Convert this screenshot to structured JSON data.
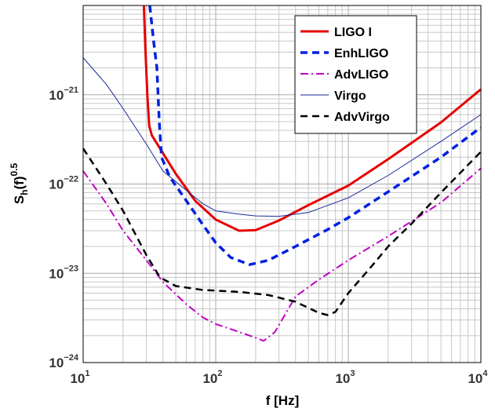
{
  "chart_data": {
    "type": "line",
    "xlabel": "f [Hz]",
    "ylabel": {
      "base": "S",
      "sub": "h",
      "mid": "(f)",
      "sup": "0.5"
    },
    "x_scale": "log",
    "y_scale": "log",
    "xlim": [
      10,
      10000
    ],
    "ylim": [
      1e-24,
      1e-20
    ],
    "grid": {
      "major": true,
      "minor": true
    },
    "legend_position": "top-right",
    "x_ticks": [
      {
        "base": "10",
        "exp": "1",
        "value": 10
      },
      {
        "base": "10",
        "exp": "2",
        "value": 100
      },
      {
        "base": "10",
        "exp": "3",
        "value": 1000
      },
      {
        "base": "10",
        "exp": "4",
        "value": 10000
      }
    ],
    "y_ticks": [
      {
        "base": "10",
        "exp": "−21",
        "value": 1e-21
      },
      {
        "base": "10",
        "exp": "−22",
        "value": 1e-22
      },
      {
        "base": "10",
        "exp": "−23",
        "value": 1e-23
      },
      {
        "base": "10",
        "exp": "−24",
        "value": 1e-24
      }
    ],
    "series": [
      {
        "name": "LIGO I",
        "color": "#e60000",
        "style": "solid",
        "width": 3,
        "points": [
          [
            28.7,
            1e-20
          ],
          [
            29.5,
            3.2e-21
          ],
          [
            30.5,
            1e-21
          ],
          [
            31.5,
            4.5e-22
          ],
          [
            33,
            3.5e-22
          ],
          [
            38,
            2.5e-22
          ],
          [
            50,
            1.3e-22
          ],
          [
            70,
            6.5e-23
          ],
          [
            100,
            4e-23
          ],
          [
            150,
            3e-23
          ],
          [
            200,
            3.05e-23
          ],
          [
            300,
            3.9e-23
          ],
          [
            500,
            5.8e-23
          ],
          [
            1000,
            9.6e-23
          ],
          [
            2000,
            1.9e-22
          ],
          [
            5000,
            4.9e-22
          ],
          [
            10000,
            1.15e-21
          ]
        ]
      },
      {
        "name": "EnhLIGO",
        "color": "#0020e0",
        "style": "dashed",
        "width": 3.5,
        "points": [
          [
            31.8,
            1e-20
          ],
          [
            34,
            4e-21
          ],
          [
            36,
            2e-21
          ],
          [
            37.5,
            5e-22
          ],
          [
            39,
            2e-22
          ],
          [
            45,
            1.2e-22
          ],
          [
            60,
            6.5e-23
          ],
          [
            80,
            3.5e-23
          ],
          [
            100,
            2.2e-23
          ],
          [
            130,
            1.5e-23
          ],
          [
            180,
            1.25e-23
          ],
          [
            250,
            1.4e-23
          ],
          [
            400,
            2e-23
          ],
          [
            700,
            3.1e-23
          ],
          [
            1000,
            4.2e-23
          ],
          [
            2000,
            8.2e-23
          ],
          [
            5000,
            2e-22
          ],
          [
            10000,
            4.3e-22
          ]
        ]
      },
      {
        "name": "AdvLIGO",
        "color": "#c000c0",
        "style": "dashdot",
        "width": 2,
        "points": [
          [
            10,
            1.4e-22
          ],
          [
            15,
            6e-23
          ],
          [
            20,
            3e-23
          ],
          [
            30,
            1.4e-23
          ],
          [
            40,
            8e-24
          ],
          [
            60,
            4.5e-24
          ],
          [
            80,
            3.2e-24
          ],
          [
            100,
            2.7e-24
          ],
          [
            150,
            2.2e-24
          ],
          [
            200,
            1.9e-24
          ],
          [
            230,
            1.75e-24
          ],
          [
            280,
            2.2e-24
          ],
          [
            400,
            5.5e-24
          ],
          [
            600,
            8.5e-24
          ],
          [
            1000,
            1.4e-23
          ],
          [
            2000,
            2.6e-23
          ],
          [
            5000,
            6.2e-23
          ],
          [
            10000,
            1.5e-22
          ]
        ]
      },
      {
        "name": "Virgo",
        "color": "#1a2a9a",
        "style": "solid",
        "width": 1,
        "points": [
          [
            10,
            2.6e-21
          ],
          [
            15,
            1.3e-21
          ],
          [
            20,
            7e-22
          ],
          [
            30,
            2.8e-22
          ],
          [
            40,
            1.4e-22
          ],
          [
            60,
            8.5e-23
          ],
          [
            80,
            6e-23
          ],
          [
            100,
            5e-23
          ],
          [
            150,
            4.6e-23
          ],
          [
            200,
            4.4e-23
          ],
          [
            300,
            4.35e-23
          ],
          [
            500,
            4.8e-23
          ],
          [
            1000,
            7e-23
          ],
          [
            2000,
            1.25e-22
          ],
          [
            5000,
            3e-22
          ],
          [
            10000,
            6e-22
          ]
        ]
      },
      {
        "name": "AdvVirgo",
        "color": "#000000",
        "style": "dashed",
        "width": 2.5,
        "points": [
          [
            10,
            2.5e-22
          ],
          [
            15,
            1e-22
          ],
          [
            20,
            5e-23
          ],
          [
            30,
            1.6e-23
          ],
          [
            38,
            9e-24
          ],
          [
            50,
            7.2e-24
          ],
          [
            80,
            6.5e-24
          ],
          [
            150,
            6.2e-24
          ],
          [
            250,
            5.7e-24
          ],
          [
            400,
            4.8e-24
          ],
          [
            600,
            3.6e-24
          ],
          [
            700,
            3.4e-24
          ],
          [
            800,
            3.7e-24
          ],
          [
            1000,
            6e-24
          ],
          [
            1500,
            1.2e-23
          ],
          [
            2000,
            2e-23
          ],
          [
            3000,
            3.6e-23
          ],
          [
            5000,
            8e-23
          ],
          [
            10000,
            2.3e-22
          ]
        ]
      }
    ]
  }
}
